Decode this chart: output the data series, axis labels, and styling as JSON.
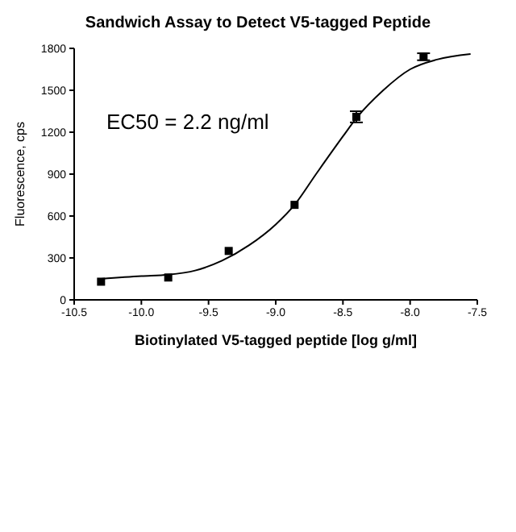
{
  "chart_data": {
    "type": "scatter",
    "title": "Sandwich Assay to Detect V5-tagged Peptide",
    "xlabel": "Biotinylated V5-tagged peptide [log g/ml]",
    "ylabel": "Fluorescence, cps",
    "annotations": [
      "EC50 = 2.2 ng/ml"
    ],
    "xlim": [
      -10.5,
      -7.5
    ],
    "xticks": [
      -10.5,
      {
        "value": -10,
        "label": "-10.0"
      },
      -9.5,
      {
        "value": -9,
        "label": "-9.0"
      },
      -8.5,
      {
        "value": -8,
        "label": "-8.0"
      },
      -7.5
    ],
    "ylim": [
      0,
      1800
    ],
    "yticks": [
      0,
      300,
      600,
      900,
      1200,
      1500,
      1800
    ],
    "series": [
      {
        "color": "#000000",
        "marker": "square",
        "x": [
          -10.3,
          -9.8,
          -9.35,
          -8.86,
          -8.4,
          -7.9
        ],
        "values": [
          130,
          160,
          350,
          680,
          1310,
          1740
        ],
        "errors": [
          null,
          null,
          null,
          null,
          40,
          25
        ]
      },
      {
        "type": "line",
        "color": "#000000",
        "marker": "none",
        "line_style": "solid",
        "x": [
          -10.3,
          -10,
          -9.8,
          -9.6,
          -9.4,
          -9.2,
          -9,
          -8.86,
          -8.7,
          -8.5,
          -8.4,
          -8.2,
          -8,
          -7.8,
          -7.55
        ],
        "values": [
          150,
          170,
          180,
          210,
          280,
          390,
          540,
          680,
          900,
          1170,
          1300,
          1500,
          1650,
          1720,
          1760
        ]
      }
    ]
  }
}
